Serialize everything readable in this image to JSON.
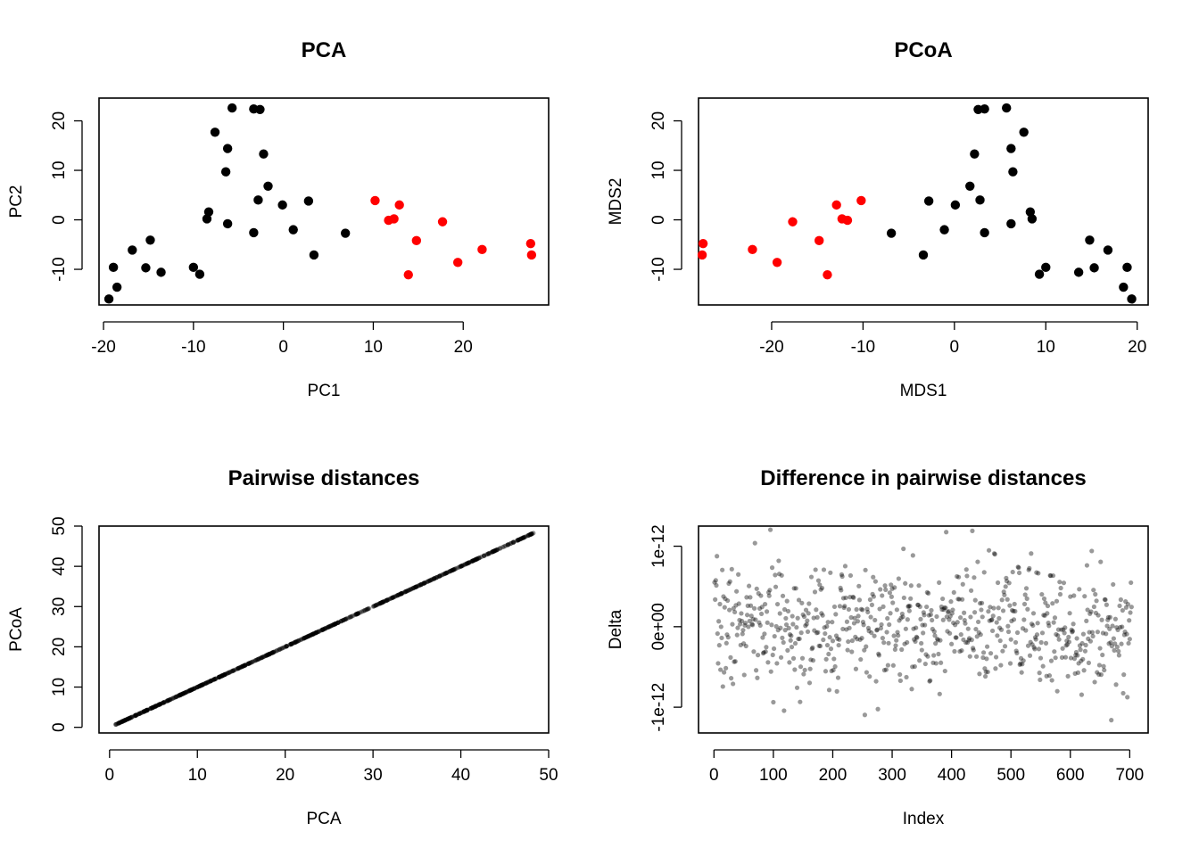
{
  "chart_data": [
    {
      "type": "scatter",
      "title": "PCA",
      "xlabel": "PC1",
      "ylabel": "PC2",
      "xlim": [
        -20.5,
        29.5
      ],
      "ylim": [
        -17.2,
        24.6
      ],
      "xticks": [
        -20,
        -10,
        0,
        10,
        20
      ],
      "yticks": [
        -10,
        0,
        10,
        20
      ],
      "xtick_labels": [
        "-20",
        "-10",
        "0",
        "10",
        "20"
      ],
      "ytick_labels": [
        "-10",
        "0",
        "10",
        "20"
      ],
      "series": [
        {
          "color": "#000000",
          "x": [
            -19.4,
            -18.9,
            -18.5,
            -16.8,
            -15.3,
            -14.8,
            -13.6,
            -10.0,
            -9.3,
            -8.5,
            -8.3,
            -7.6,
            -6.4,
            -6.2,
            -6.2,
            -5.7,
            -3.3,
            -3.3,
            -2.8,
            -2.6,
            -2.2,
            -1.7,
            -0.1,
            1.1,
            2.8,
            3.4,
            6.9
          ],
          "y": [
            -16.0,
            -9.6,
            -13.6,
            -6.1,
            -9.7,
            -4.1,
            -10.6,
            -9.6,
            -11.0,
            0.2,
            1.6,
            17.7,
            9.7,
            -0.8,
            14.4,
            22.6,
            -2.6,
            22.4,
            4.0,
            22.3,
            13.3,
            6.8,
            3.0,
            -2.0,
            3.8,
            -7.1,
            -2.7
          ]
        },
        {
          "color": "#ff0000",
          "x": [
            10.2,
            11.7,
            12.3,
            12.9,
            13.9,
            14.8,
            17.7,
            19.4,
            22.1,
            27.5,
            27.6
          ],
          "y": [
            3.9,
            -0.1,
            0.2,
            3.0,
            -11.1,
            -4.2,
            -0.4,
            -8.6,
            -6.0,
            -4.8,
            -7.1
          ]
        }
      ]
    },
    {
      "type": "scatter",
      "title": "PCoA",
      "xlabel": "MDS1",
      "ylabel": "MDS2",
      "xlim": [
        -28.0,
        21.2
      ],
      "ylim": [
        -17.2,
        24.6
      ],
      "xticks": [
        -20,
        -10,
        0,
        10,
        20
      ],
      "yticks": [
        -10,
        0,
        10,
        20
      ],
      "xtick_labels": [
        "-20",
        "-10",
        "0",
        "10",
        "20"
      ],
      "ytick_labels": [
        "-10",
        "0",
        "10",
        "20"
      ],
      "series": [
        {
          "color": "#000000",
          "x": [
            19.4,
            18.9,
            18.5,
            16.8,
            15.3,
            14.8,
            13.6,
            10.0,
            9.3,
            8.5,
            8.3,
            7.6,
            6.4,
            6.2,
            6.2,
            5.7,
            3.3,
            3.3,
            2.8,
            2.6,
            2.2,
            1.7,
            0.1,
            -1.1,
            -2.8,
            -3.4,
            -6.9
          ],
          "y": [
            -16.0,
            -9.6,
            -13.6,
            -6.1,
            -9.7,
            -4.1,
            -10.6,
            -9.6,
            -11.0,
            0.2,
            1.6,
            17.7,
            9.7,
            -0.8,
            14.4,
            22.6,
            -2.6,
            22.4,
            4.0,
            22.3,
            13.3,
            6.8,
            3.0,
            -2.0,
            3.8,
            -7.1,
            -2.7
          ]
        },
        {
          "color": "#ff0000",
          "x": [
            -10.2,
            -11.7,
            -12.3,
            -12.9,
            -13.9,
            -14.8,
            -17.7,
            -19.4,
            -22.1,
            -27.5,
            -27.6
          ],
          "y": [
            3.9,
            -0.1,
            0.2,
            3.0,
            -11.1,
            -4.2,
            -0.4,
            -8.6,
            -6.0,
            -4.8,
            -7.1
          ]
        }
      ]
    },
    {
      "type": "scatter",
      "title": "Pairwise distances",
      "xlabel": "PCA",
      "ylabel": "PCoA",
      "xlim": [
        -1.2,
        50.0
      ],
      "ylim": [
        -1.4,
        50.0
      ],
      "xticks": [
        0,
        10,
        20,
        30,
        40,
        50
      ],
      "yticks": [
        0,
        10,
        20,
        30,
        40,
        50
      ],
      "xtick_labels": [
        "0",
        "10",
        "20",
        "30",
        "40",
        "50"
      ],
      "ytick_labels": [
        "0",
        "10",
        "20",
        "30",
        "40",
        "50"
      ],
      "point_color": "rgba(0,0,0,0.4)",
      "relation": "y = x",
      "n_points": 703,
      "range": [
        0.6,
        48.3
      ]
    },
    {
      "type": "scatter",
      "title": "Difference in pairwise distances",
      "xlabel": "Index",
      "ylabel": "Delta",
      "xlim": [
        -26,
        731
      ],
      "ylim": [
        -1.32e-12,
        1.25e-12
      ],
      "xticks": [
        0,
        100,
        200,
        300,
        400,
        500,
        600,
        700
      ],
      "yticks": [
        -1e-12,
        0,
        1e-12
      ],
      "xtick_labels": [
        "0",
        "100",
        "200",
        "300",
        "400",
        "500",
        "600",
        "700"
      ],
      "ytick_labels": [
        "-1e-12",
        "0e+00",
        "1e-12"
      ],
      "point_color": "rgba(0,0,0,0.4)",
      "n_points": 703,
      "value_range": [
        -1.22e-12,
        1.22e-12
      ]
    }
  ]
}
